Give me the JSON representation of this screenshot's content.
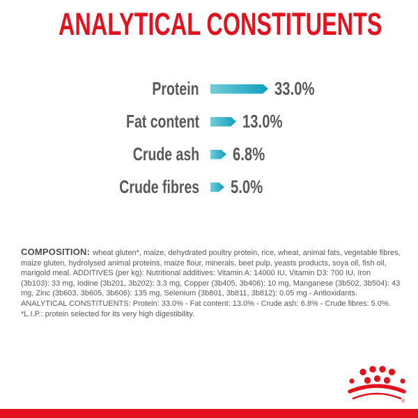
{
  "header": {
    "title": "ANALYTICAL CONSTITUENTS"
  },
  "chart_data": {
    "type": "bar",
    "orientation": "horizontal",
    "title": "ANALYTICAL CONSTITUENTS",
    "categories": [
      "Protein",
      "Fat content",
      "Crude ash",
      "Crude fibres"
    ],
    "values": [
      33.0,
      13.0,
      6.8,
      5.0
    ],
    "value_labels": [
      "33.0%",
      "13.0%",
      "6.8%",
      "5.0%"
    ],
    "unit": "%",
    "axes": "none",
    "grid": false,
    "legend": "none"
  },
  "composition": {
    "label": "COMPOSITION:",
    "text": "wheat gluten*, maize, dehydrated poultry protein, rice, wheat, animal fats, vegetable fibres, maize gluten, hydrolysed animal proteins, maize flour, minerals, beet pulp, yeasts products, soya oil, fish oil, marigold meal. ADDITIVES (per kg): Nutritional additives: Vitamin A: 14000 IU, Vitamin D3: 700 IU, Iron (3b103): 33 mg, Iodine (3b201, 3b202): 3.3 mg, Copper (3b405, 3b406): 10 mg, Manganese (3b502, 3b504): 43 mg, Zinc (3b603, 3b605, 3b606): 135 mg, Selenium (3b801, 3b811, 3b812): 0.05 mg - Antioxidants. ANALYTICAL CONSTITUENTS: Protein: 33.0% - Fat content: 13.0% - Crude ash: 6.8% - Crude fibres: 5.0%. *L.I.P.: protein selected for its very high digestibility."
  },
  "footer": {
    "logo": "royal-canin-crown",
    "registered_mark": "®"
  },
  "colors": {
    "brand_red": "#e2121f",
    "text_gray": "#57585a",
    "bar_teal_light": "#74cbd7",
    "bar_teal_dark": "#0f9fbd"
  }
}
